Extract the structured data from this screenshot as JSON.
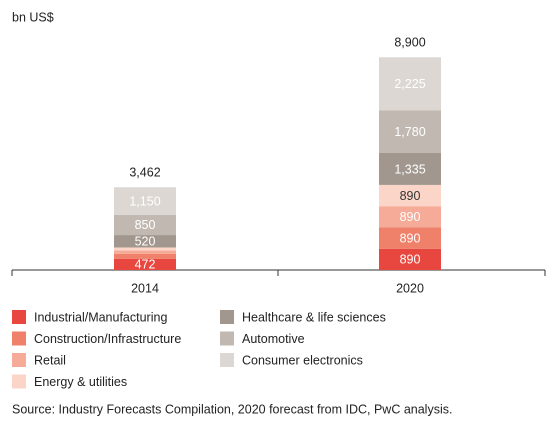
{
  "chart_data": {
    "type": "stacked-bar",
    "unit_label": "bn US$",
    "categories": [
      "2014",
      "2020"
    ],
    "series": [
      {
        "name": "Industrial/Manufacturing",
        "color": "#e8473f",
        "values": [
          472,
          890
        ],
        "value_labels": [
          "472",
          "890"
        ]
      },
      {
        "name": "Construction/Infrastructure",
        "color": "#ef8069",
        "values": [
          200,
          890
        ],
        "value_labels": [
          null,
          "890"
        ]
      },
      {
        "name": "Retail",
        "color": "#f5ab98",
        "values": [
          150,
          890
        ],
        "value_labels": [
          null,
          "890"
        ]
      },
      {
        "name": "Energy & utilities",
        "color": "#fbd6c8",
        "values": [
          120,
          890
        ],
        "value_labels": [
          null,
          "890"
        ]
      },
      {
        "name": "Healthcare & life sciences",
        "color": "#a1978f",
        "values": [
          520,
          1335
        ],
        "value_labels": [
          "520",
          "1,335"
        ]
      },
      {
        "name": "Automotive",
        "color": "#c1b9b1",
        "values": [
          850,
          1780
        ],
        "value_labels": [
          "850",
          "1,780"
        ]
      },
      {
        "name": "Consumer electronics",
        "color": "#dcd7d2",
        "values": [
          1150,
          2225
        ],
        "value_labels": [
          "1,150",
          "2,225"
        ]
      }
    ],
    "totals": [
      3462,
      8900
    ],
    "total_labels": [
      "3,462",
      "8,900"
    ],
    "ylim": [
      0,
      10000
    ],
    "source": "Source: Industry Forecasts Compilation, 2020 forecast from IDC, PwC analysis."
  }
}
